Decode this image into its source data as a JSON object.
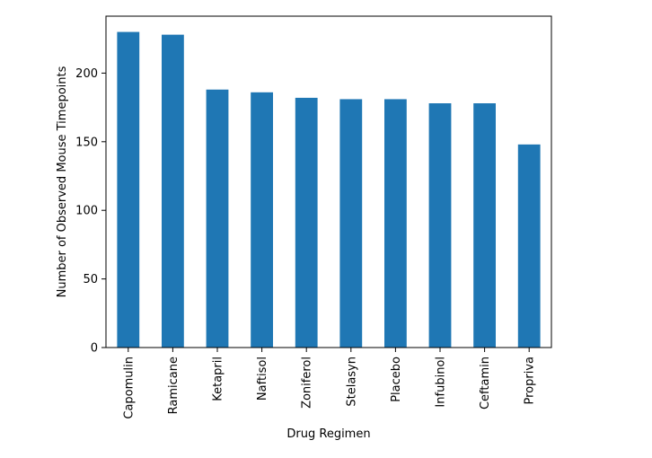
{
  "chart_data": {
    "type": "bar",
    "title": "",
    "xlabel": "Drug Regimen",
    "ylabel": "Number of Observed Mouse Timepoints",
    "categories": [
      "Capomulin",
      "Ramicane",
      "Ketapril",
      "Naftisol",
      "Zoniferol",
      "Stelasyn",
      "Placebo",
      "Infubinol",
      "Ceftamin",
      "Propriva"
    ],
    "values": [
      230,
      228,
      188,
      186,
      182,
      181,
      181,
      178,
      178,
      148
    ],
    "ylim": [
      0,
      241.5
    ],
    "yticks": [
      0,
      50,
      100,
      150,
      200
    ],
    "grid": false,
    "legend": "none",
    "bar_color": "#1f77b4"
  }
}
